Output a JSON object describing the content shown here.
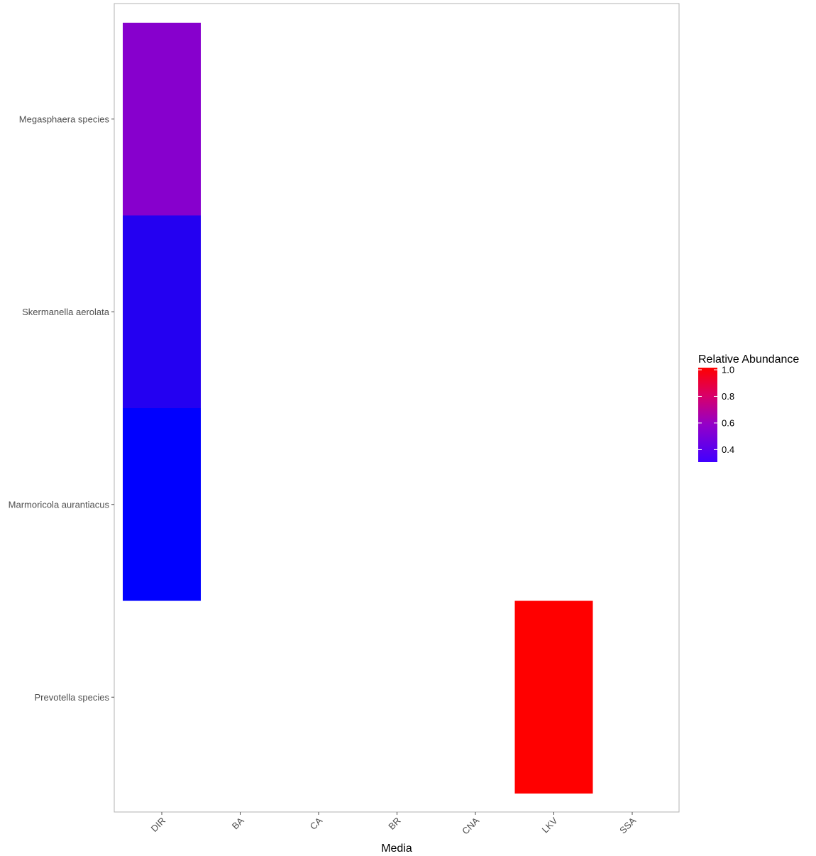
{
  "chart_data": {
    "type": "heatmap",
    "title": "",
    "xlabel": "Media",
    "ylabel": "",
    "x_categories": [
      "DIR",
      "BA",
      "CA",
      "BR",
      "CNA",
      "LKV",
      "SSA"
    ],
    "y_categories": [
      "Megasphaera species",
      "Skermanella aerolata",
      "Marmoricola aurantiacus",
      "Prevotella species"
    ],
    "cells": [
      {
        "x": "DIR",
        "y": "Megasphaera species",
        "value": 0.55
      },
      {
        "x": "DIR",
        "y": "Skermanella aerolata",
        "value": 0.36
      },
      {
        "x": "DIR",
        "y": "Marmoricola aurantiacus",
        "value": 0.29
      },
      {
        "x": "LKV",
        "y": "Prevotella species",
        "value": 1.0
      }
    ],
    "legend": {
      "title": "Relative Abundance",
      "ticks": [
        "1.0",
        "0.8",
        "0.6",
        "0.4"
      ],
      "tick_values": [
        1.0,
        0.8,
        0.6,
        0.4
      ],
      "range": [
        0.29,
        1.0
      ],
      "low_color": "#0000ff",
      "mid_color": "#9900cc",
      "high_color": "#ff0000",
      "placement": "right"
    },
    "grid": false
  }
}
